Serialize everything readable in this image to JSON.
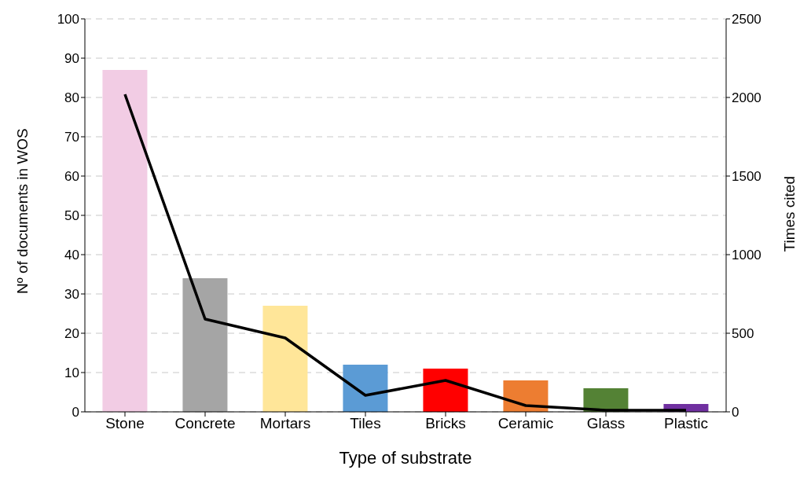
{
  "chart_data": {
    "type": "bar",
    "xlabel": "Type of substrate",
    "ylabel": "Nº of documents in WOS",
    "y2label": "Times cited",
    "categories": [
      "Stone",
      "Concrete",
      "Mortars",
      "Tiles",
      "Bricks",
      "Ceramic",
      "Glass",
      "Plastic"
    ],
    "series": [
      {
        "colors": [
          "#f2cce4",
          "#a5a5a5",
          "#ffe699",
          "#5b9bd5",
          "#ff0000",
          "#ed7d31",
          "#548235",
          "#7030a0"
        ],
        "values": [
          87,
          34,
          27,
          12,
          11,
          8,
          6,
          2
        ]
      },
      {
        "type": "line",
        "axis": "y2",
        "color": "#000000",
        "values": [
          2020,
          590,
          470,
          105,
          200,
          40,
          10,
          10
        ]
      }
    ],
    "ylim": [
      0,
      100
    ],
    "yticks": [
      0,
      10,
      20,
      30,
      40,
      50,
      60,
      70,
      80,
      90,
      100
    ],
    "y2lim": [
      0,
      2500
    ],
    "y2ticks": [
      0,
      500,
      1000,
      1500,
      2000,
      2500
    ],
    "grid": "y",
    "marker": "none",
    "line_style": "solid"
  }
}
